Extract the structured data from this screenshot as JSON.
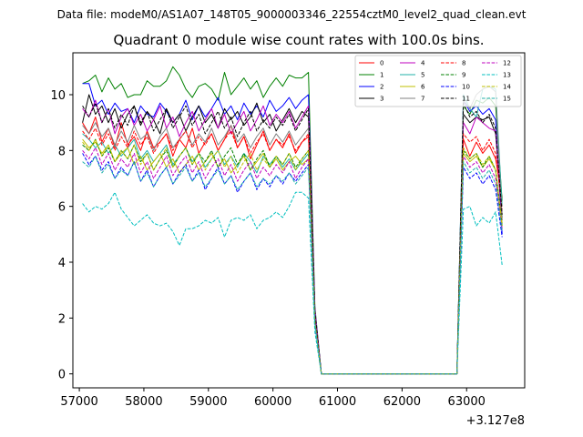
{
  "suptitle": "Data file: modeM0/AS1A07_148T05_9000003346_22554cztM0_level2_quad_clean.evt",
  "chart_data": {
    "type": "line",
    "title": "Quadrant 0 module wise count rates with 100.0s bins.",
    "xlabel": "",
    "ylabel": "",
    "x_offset_label": "+3.127e8",
    "xlim": [
      56900,
      63900
    ],
    "ylim": [
      -0.5,
      11.5
    ],
    "x_ticks": [
      57000,
      58000,
      59000,
      60000,
      61000,
      62000,
      63000
    ],
    "x_tick_labels": [
      "57000",
      "58000",
      "59000",
      "60000",
      "61000",
      "62000",
      "63000"
    ],
    "y_ticks": [
      0,
      2,
      4,
      6,
      8,
      10
    ],
    "y_tick_labels": [
      "0",
      "2",
      "4",
      "6",
      "8",
      "10"
    ],
    "grid": false,
    "legend_position": "upper-right",
    "x": [
      57050,
      57150,
      57250,
      57350,
      57450,
      57550,
      57650,
      57750,
      57850,
      57950,
      58050,
      58150,
      58250,
      58350,
      58450,
      58550,
      58650,
      58750,
      58850,
      58950,
      59050,
      59150,
      59250,
      59350,
      59450,
      59550,
      59650,
      59750,
      59850,
      59950,
      60050,
      60150,
      60250,
      60350,
      60450,
      60550,
      60650,
      60750,
      60850,
      60950,
      61050,
      61150,
      61250,
      61350,
      61450,
      61550,
      61650,
      61750,
      61850,
      61950,
      62050,
      62150,
      62250,
      62350,
      62450,
      62550,
      62650,
      62750,
      62850,
      62950,
      63050,
      63150,
      63250,
      63350,
      63450,
      63550
    ],
    "series": [
      {
        "name": "0",
        "color": "#ff0000",
        "dash": "solid",
        "values": [
          9.0,
          8.6,
          9.2,
          8.3,
          8.8,
          8.1,
          9.0,
          8.2,
          8.5,
          8.0,
          8.7,
          8.1,
          8.3,
          8.6,
          7.8,
          8.4,
          8.1,
          8.8,
          7.9,
          8.3,
          8.6,
          8.0,
          8.4,
          8.9,
          8.1,
          8.5,
          7.7,
          8.2,
          8.7,
          8.0,
          8.4,
          8.1,
          8.6,
          7.9,
          8.3,
          8.5,
          2.2,
          0.0,
          0.0,
          0.0,
          0.0,
          0.0,
          0.0,
          0.0,
          0.0,
          0.0,
          0.0,
          0.0,
          0.0,
          0.0,
          0.0,
          0.0,
          0.0,
          0.0,
          0.0,
          0.0,
          0.0,
          0.0,
          0.0,
          8.4,
          7.8,
          8.3,
          7.9,
          8.2,
          7.7,
          6.3
        ]
      },
      {
        "name": "1",
        "color": "#008000",
        "dash": "solid",
        "values": [
          10.4,
          10.5,
          10.7,
          10.1,
          10.6,
          10.2,
          10.4,
          9.9,
          10.0,
          10.0,
          10.5,
          10.3,
          10.3,
          10.5,
          11.0,
          10.7,
          10.2,
          9.9,
          10.3,
          10.4,
          10.2,
          9.8,
          10.8,
          10.0,
          10.3,
          10.6,
          10.2,
          10.5,
          9.9,
          10.3,
          10.6,
          10.3,
          10.7,
          10.6,
          10.6,
          10.8,
          2.4,
          0.0,
          0.0,
          0.0,
          0.0,
          0.0,
          0.0,
          0.0,
          0.0,
          0.0,
          0.0,
          0.0,
          0.0,
          0.0,
          0.0,
          0.0,
          0.0,
          0.0,
          0.0,
          0.0,
          0.0,
          0.0,
          0.0,
          9.6,
          9.3,
          9.8,
          9.7,
          9.9,
          9.6,
          6.2
        ]
      },
      {
        "name": "2",
        "color": "#0000ff",
        "dash": "solid",
        "values": [
          10.4,
          10.4,
          9.6,
          9.8,
          9.3,
          9.7,
          9.4,
          9.5,
          9.0,
          9.6,
          9.3,
          9.2,
          9.7,
          9.4,
          9.0,
          9.3,
          9.8,
          9.1,
          9.6,
          9.2,
          9.5,
          9.9,
          9.3,
          9.6,
          9.1,
          9.7,
          9.3,
          9.6,
          9.2,
          9.8,
          9.4,
          9.6,
          9.9,
          9.5,
          9.8,
          10.0,
          2.3,
          0.0,
          0.0,
          0.0,
          0.0,
          0.0,
          0.0,
          0.0,
          0.0,
          0.0,
          0.0,
          0.0,
          0.0,
          0.0,
          0.0,
          0.0,
          0.0,
          0.0,
          0.0,
          0.0,
          0.0,
          0.0,
          0.0,
          9.8,
          9.4,
          9.6,
          9.3,
          9.5,
          9.1,
          5.0
        ]
      },
      {
        "name": "3",
        "color": "#000000",
        "dash": "solid",
        "values": [
          9.0,
          10.0,
          9.3,
          9.6,
          9.0,
          9.5,
          8.8,
          9.3,
          9.6,
          8.9,
          9.4,
          9.1,
          8.6,
          9.5,
          9.0,
          9.3,
          8.7,
          9.2,
          9.6,
          9.0,
          9.3,
          8.8,
          9.5,
          9.1,
          9.4,
          8.9,
          9.2,
          9.7,
          9.0,
          9.3,
          8.7,
          9.1,
          9.5,
          9.0,
          9.4,
          9.2,
          2.2,
          0.0,
          0.0,
          0.0,
          0.0,
          0.0,
          0.0,
          0.0,
          0.0,
          0.0,
          0.0,
          0.0,
          0.0,
          0.0,
          0.0,
          0.0,
          0.0,
          0.0,
          0.0,
          0.0,
          0.0,
          0.0,
          0.0,
          9.3,
          9.0,
          9.2,
          9.1,
          9.2,
          8.6,
          5.6
        ]
      },
      {
        "name": "4",
        "color": "#bf00bf",
        "dash": "solid",
        "values": [
          9.5,
          9.2,
          9.8,
          9.0,
          9.5,
          8.6,
          9.2,
          9.5,
          8.9,
          9.3,
          8.7,
          9.1,
          9.6,
          8.8,
          9.2,
          8.5,
          9.0,
          9.4,
          8.7,
          9.1,
          9.5,
          8.8,
          9.3,
          8.6,
          9.0,
          9.4,
          8.7,
          9.1,
          9.6,
          8.9,
          9.3,
          9.0,
          9.4,
          8.8,
          9.2,
          9.6,
          2.3,
          0.0,
          0.0,
          0.0,
          0.0,
          0.0,
          0.0,
          0.0,
          0.0,
          0.0,
          0.0,
          0.0,
          0.0,
          0.0,
          0.0,
          0.0,
          0.0,
          0.0,
          0.0,
          0.0,
          0.0,
          0.0,
          0.0,
          9.0,
          8.6,
          9.2,
          9.0,
          8.8,
          8.7,
          5.5
        ]
      },
      {
        "name": "5",
        "color": "#20b2aa",
        "dash": "solid",
        "values": [
          8.6,
          8.4,
          8.1,
          8.3,
          7.9,
          8.2,
          7.8,
          8.1,
          8.4,
          7.7,
          8.0,
          7.6,
          7.9,
          8.2,
          7.5,
          7.8,
          8.1,
          7.6,
          7.9,
          7.4,
          7.7,
          8.0,
          7.5,
          7.8,
          7.4,
          7.9,
          7.6,
          7.2,
          7.8,
          7.5,
          7.8,
          7.4,
          7.7,
          7.3,
          7.6,
          7.9,
          2.0,
          0.0,
          0.0,
          0.0,
          0.0,
          0.0,
          0.0,
          0.0,
          0.0,
          0.0,
          0.0,
          0.0,
          0.0,
          0.0,
          0.0,
          0.0,
          0.0,
          0.0,
          0.0,
          0.0,
          0.0,
          0.0,
          0.0,
          10.0,
          9.5,
          9.2,
          10.2,
          10.3,
          10.2,
          6.0
        ]
      },
      {
        "name": "6",
        "color": "#bfbf00",
        "dash": "solid",
        "values": [
          8.4,
          8.1,
          8.3,
          7.9,
          8.2,
          7.6,
          7.9,
          8.1,
          7.5,
          7.8,
          7.3,
          7.6,
          7.9,
          7.4,
          7.7,
          7.2,
          7.5,
          7.8,
          7.3,
          7.6,
          7.9,
          7.4,
          7.7,
          7.2,
          7.5,
          7.8,
          7.3,
          7.6,
          7.9,
          7.4,
          7.7,
          7.3,
          7.6,
          7.8,
          7.5,
          7.7,
          1.9,
          0.0,
          0.0,
          0.0,
          0.0,
          0.0,
          0.0,
          0.0,
          0.0,
          0.0,
          0.0,
          0.0,
          0.0,
          0.0,
          0.0,
          0.0,
          0.0,
          0.0,
          0.0,
          0.0,
          0.0,
          0.0,
          0.0,
          7.9,
          7.6,
          7.8,
          7.4,
          7.7,
          7.3,
          5.4
        ]
      },
      {
        "name": "7",
        "color": "#808080",
        "dash": "solid",
        "values": [
          8.9,
          8.6,
          9.0,
          8.5,
          8.8,
          8.2,
          8.7,
          8.3,
          8.9,
          8.4,
          8.6,
          8.0,
          8.5,
          8.8,
          8.1,
          8.4,
          8.7,
          8.2,
          8.6,
          8.3,
          8.8,
          8.2,
          8.5,
          8.9,
          8.3,
          8.6,
          8.1,
          8.5,
          8.8,
          8.2,
          8.6,
          8.3,
          8.7,
          8.2,
          8.5,
          8.8,
          2.1,
          0.0,
          0.0,
          0.0,
          0.0,
          0.0,
          0.0,
          0.0,
          0.0,
          0.0,
          0.0,
          0.0,
          0.0,
          0.0,
          0.0,
          0.0,
          0.0,
          0.0,
          0.0,
          0.0,
          0.0,
          0.0,
          0.0,
          9.8,
          9.5,
          10.0,
          10.2,
          10.3,
          10.1,
          5.5
        ]
      },
      {
        "name": "8",
        "color": "#ff0000",
        "dash": "dashed",
        "values": [
          8.7,
          8.4,
          8.8,
          8.2,
          8.6,
          8.0,
          8.5,
          8.1,
          8.7,
          8.2,
          8.5,
          7.9,
          8.3,
          8.6,
          8.0,
          8.4,
          8.7,
          8.1,
          8.5,
          8.2,
          8.6,
          8.0,
          8.4,
          8.7,
          8.1,
          8.5,
          7.9,
          8.3,
          8.6,
          8.0,
          8.4,
          8.2,
          8.5,
          8.0,
          8.3,
          8.6,
          2.0,
          0.0,
          0.0,
          0.0,
          0.0,
          0.0,
          0.0,
          0.0,
          0.0,
          0.0,
          0.0,
          0.0,
          0.0,
          0.0,
          0.0,
          0.0,
          0.0,
          0.0,
          0.0,
          0.0,
          0.0,
          0.0,
          0.0,
          8.6,
          8.3,
          8.5,
          8.0,
          8.4,
          7.9,
          5.9
        ]
      },
      {
        "name": "9",
        "color": "#008000",
        "dash": "dashed",
        "values": [
          8.2,
          8.0,
          8.4,
          7.8,
          8.1,
          7.6,
          8.0,
          7.7,
          8.2,
          7.6,
          7.9,
          7.3,
          7.7,
          8.0,
          7.4,
          7.8,
          8.1,
          7.5,
          7.9,
          7.6,
          8.0,
          7.4,
          7.8,
          8.1,
          7.5,
          7.9,
          7.3,
          7.7,
          8.0,
          7.4,
          7.8,
          7.5,
          7.9,
          7.4,
          7.7,
          8.0,
          1.9,
          0.0,
          0.0,
          0.0,
          0.0,
          0.0,
          0.0,
          0.0,
          0.0,
          0.0,
          0.0,
          0.0,
          0.0,
          0.0,
          0.0,
          0.0,
          0.0,
          0.0,
          0.0,
          0.0,
          0.0,
          0.0,
          0.0,
          8.0,
          7.7,
          7.9,
          7.4,
          7.8,
          7.3,
          5.3
        ]
      },
      {
        "name": "10",
        "color": "#0000ff",
        "dash": "dashed",
        "values": [
          7.9,
          7.5,
          7.8,
          7.3,
          7.6,
          7.0,
          7.4,
          7.1,
          7.6,
          6.9,
          7.3,
          6.7,
          7.1,
          7.4,
          6.8,
          7.2,
          7.5,
          6.9,
          7.3,
          6.6,
          7.0,
          7.4,
          6.8,
          7.1,
          6.5,
          6.9,
          7.2,
          6.6,
          7.0,
          6.7,
          7.1,
          6.8,
          7.2,
          6.9,
          7.2,
          7.5,
          1.8,
          0.0,
          0.0,
          0.0,
          0.0,
          0.0,
          0.0,
          0.0,
          0.0,
          0.0,
          0.0,
          0.0,
          0.0,
          0.0,
          0.0,
          0.0,
          0.0,
          0.0,
          0.0,
          0.0,
          0.0,
          0.0,
          0.0,
          7.4,
          7.0,
          7.2,
          6.8,
          7.1,
          6.6,
          4.9
        ]
      },
      {
        "name": "11",
        "color": "#000000",
        "dash": "dashed",
        "values": [
          9.6,
          9.2,
          9.7,
          9.0,
          9.5,
          8.8,
          9.3,
          8.9,
          9.6,
          9.0,
          9.4,
          8.7,
          9.1,
          9.5,
          8.8,
          9.2,
          9.6,
          8.9,
          9.3,
          8.6,
          9.0,
          9.4,
          8.8,
          9.2,
          8.5,
          9.0,
          9.4,
          8.7,
          9.1,
          8.8,
          9.2,
          8.9,
          9.3,
          8.7,
          9.1,
          9.5,
          2.2,
          0.0,
          0.0,
          0.0,
          0.0,
          0.0,
          0.0,
          0.0,
          0.0,
          0.0,
          0.0,
          0.0,
          0.0,
          0.0,
          0.0,
          0.0,
          0.0,
          0.0,
          0.0,
          0.0,
          0.0,
          0.0,
          0.0,
          9.7,
          9.2,
          9.4,
          9.0,
          9.3,
          8.8,
          5.7
        ]
      },
      {
        "name": "12",
        "color": "#bf00bf",
        "dash": "dashed",
        "values": [
          8.0,
          7.7,
          8.1,
          7.5,
          7.9,
          7.3,
          7.7,
          7.4,
          7.9,
          7.2,
          7.6,
          7.0,
          7.4,
          7.8,
          7.1,
          7.5,
          7.8,
          7.2,
          7.6,
          7.0,
          7.4,
          7.7,
          7.1,
          7.5,
          6.9,
          7.3,
          7.6,
          7.0,
          7.4,
          7.1,
          7.5,
          7.2,
          7.6,
          7.0,
          7.4,
          7.7,
          1.9,
          0.0,
          0.0,
          0.0,
          0.0,
          0.0,
          0.0,
          0.0,
          0.0,
          0.0,
          0.0,
          0.0,
          0.0,
          0.0,
          0.0,
          0.0,
          0.0,
          0.0,
          0.0,
          0.0,
          0.0,
          0.0,
          0.0,
          7.8,
          7.4,
          7.6,
          7.2,
          7.5,
          7.0,
          5.2
        ]
      },
      {
        "name": "13",
        "color": "#00bfbf",
        "dash": "dashed",
        "values": [
          6.1,
          5.8,
          6.0,
          5.9,
          6.1,
          6.5,
          5.9,
          5.6,
          5.3,
          5.5,
          5.7,
          5.4,
          5.3,
          5.4,
          5.1,
          4.6,
          5.2,
          5.2,
          5.3,
          5.5,
          5.4,
          5.6,
          4.9,
          5.5,
          5.6,
          5.5,
          5.7,
          5.2,
          5.5,
          5.6,
          5.8,
          5.6,
          6.0,
          6.5,
          6.5,
          6.3,
          1.5,
          0.0,
          0.0,
          0.0,
          0.0,
          0.0,
          0.0,
          0.0,
          0.0,
          0.0,
          0.0,
          0.0,
          0.0,
          0.0,
          0.0,
          0.0,
          0.0,
          0.0,
          0.0,
          0.0,
          0.0,
          0.0,
          0.0,
          5.9,
          6.0,
          5.3,
          5.6,
          5.4,
          5.8,
          3.9
        ]
      },
      {
        "name": "14",
        "color": "#bfbf00",
        "dash": "dashed",
        "values": [
          8.3,
          8.0,
          8.4,
          7.8,
          8.2,
          7.6,
          8.0,
          7.7,
          8.2,
          7.5,
          7.9,
          7.3,
          7.7,
          8.1,
          7.4,
          7.8,
          8.1,
          7.5,
          7.9,
          7.3,
          7.7,
          8.0,
          7.4,
          7.8,
          7.2,
          7.6,
          7.9,
          7.3,
          7.7,
          7.4,
          7.8,
          7.5,
          7.9,
          7.3,
          7.7,
          8.0,
          1.9,
          0.0,
          0.0,
          0.0,
          0.0,
          0.0,
          0.0,
          0.0,
          0.0,
          0.0,
          0.0,
          0.0,
          0.0,
          0.0,
          0.0,
          0.0,
          0.0,
          0.0,
          0.0,
          0.0,
          0.0,
          0.0,
          0.0,
          8.1,
          7.7,
          7.9,
          7.5,
          7.8,
          7.3,
          5.3
        ]
      },
      {
        "name": "15",
        "color": "#20b2aa",
        "dash": "dashed",
        "values": [
          7.6,
          7.4,
          7.8,
          7.2,
          7.5,
          7.0,
          7.3,
          7.1,
          7.6,
          6.9,
          7.2,
          6.7,
          7.1,
          7.4,
          6.8,
          7.1,
          7.4,
          6.9,
          7.2,
          6.7,
          7.0,
          7.3,
          6.8,
          7.1,
          6.6,
          6.9,
          7.2,
          6.7,
          7.0,
          6.8,
          7.1,
          6.9,
          7.2,
          6.8,
          7.1,
          7.4,
          1.8,
          0.0,
          0.0,
          0.0,
          0.0,
          0.0,
          0.0,
          0.0,
          0.0,
          0.0,
          0.0,
          0.0,
          0.0,
          0.0,
          0.0,
          0.0,
          0.0,
          0.0,
          0.0,
          0.0,
          0.0,
          0.0,
          0.0,
          7.6,
          7.2,
          7.4,
          7.0,
          7.3,
          6.8,
          5.1
        ]
      }
    ]
  }
}
